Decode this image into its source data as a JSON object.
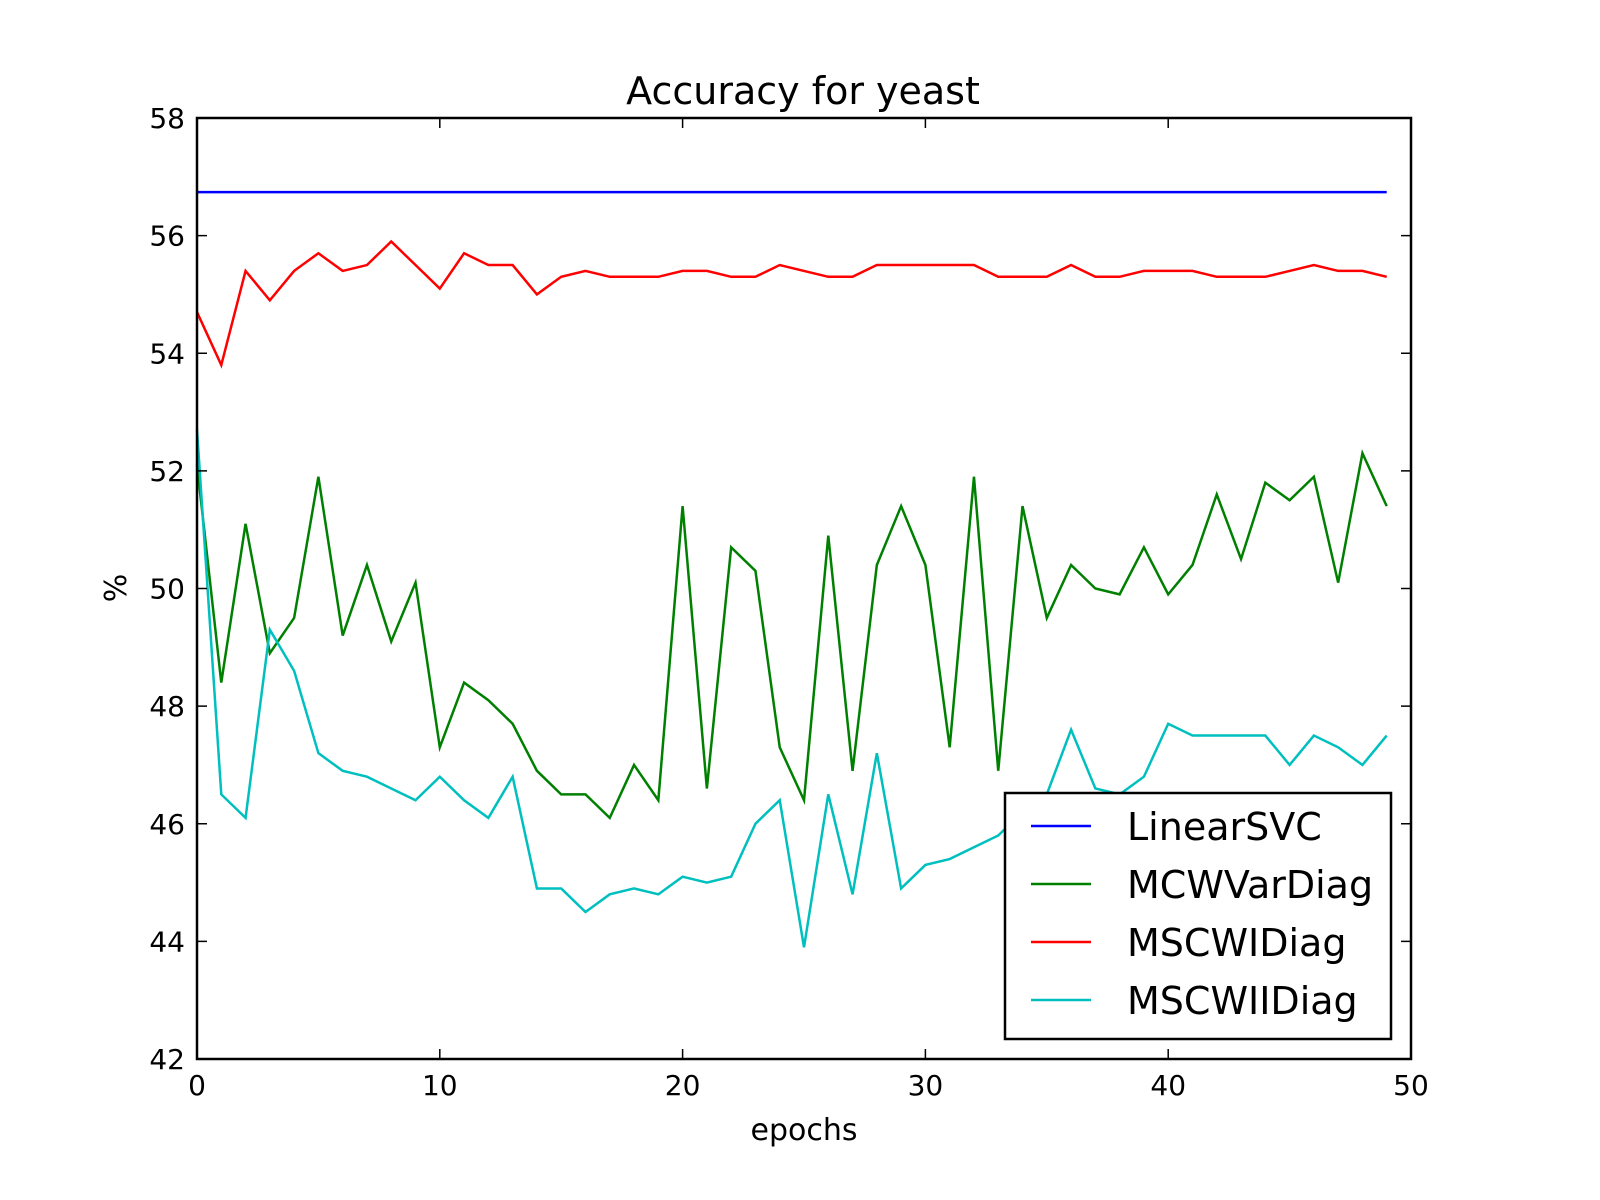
{
  "chart_data": {
    "type": "line",
    "title": "Accuracy for yeast",
    "xlabel": "epochs",
    "ylabel": "%",
    "xlim": [
      0,
      50
    ],
    "ylim": [
      42,
      58
    ],
    "xticks": [
      0,
      10,
      20,
      30,
      40,
      50
    ],
    "yticks": [
      42,
      44,
      46,
      48,
      50,
      52,
      54,
      56,
      58
    ],
    "grid": false,
    "legend_position": "lower-right",
    "x": [
      0,
      1,
      2,
      3,
      4,
      5,
      6,
      7,
      8,
      9,
      10,
      11,
      12,
      13,
      14,
      15,
      16,
      17,
      18,
      19,
      20,
      21,
      22,
      23,
      24,
      25,
      26,
      27,
      28,
      29,
      30,
      31,
      32,
      33,
      34,
      35,
      36,
      37,
      38,
      39,
      40,
      41,
      42,
      43,
      44,
      45,
      46,
      47,
      48,
      49
    ],
    "series": [
      {
        "name": "LinearSVC",
        "color": "#0000ff",
        "values": [
          56.74,
          56.74,
          56.74,
          56.74,
          56.74,
          56.74,
          56.74,
          56.74,
          56.74,
          56.74,
          56.74,
          56.74,
          56.74,
          56.74,
          56.74,
          56.74,
          56.74,
          56.74,
          56.74,
          56.74,
          56.74,
          56.74,
          56.74,
          56.74,
          56.74,
          56.74,
          56.74,
          56.74,
          56.74,
          56.74,
          56.74,
          56.74,
          56.74,
          56.74,
          56.74,
          56.74,
          56.74,
          56.74,
          56.74,
          56.74,
          56.74,
          56.74,
          56.74,
          56.74,
          56.74,
          56.74,
          56.74,
          56.74,
          56.74,
          56.74
        ]
      },
      {
        "name": "MCWVarDiag",
        "color": "#008000",
        "values": [
          52.1,
          48.4,
          51.1,
          48.9,
          49.5,
          51.9,
          49.2,
          50.4,
          49.1,
          50.1,
          47.3,
          48.4,
          48.1,
          47.7,
          46.9,
          46.5,
          46.5,
          46.1,
          47.0,
          46.4,
          51.4,
          46.6,
          50.7,
          50.3,
          47.3,
          46.4,
          50.9,
          46.9,
          50.4,
          51.4,
          50.4,
          47.3,
          51.9,
          46.9,
          51.4,
          49.5,
          50.4,
          50.0,
          49.9,
          50.7,
          49.9,
          50.4,
          51.6,
          50.5,
          51.8,
          51.5,
          51.9,
          50.1,
          52.3,
          51.4
        ]
      },
      {
        "name": "MSCWIDiag",
        "color": "#ff0000",
        "values": [
          54.7,
          53.8,
          55.4,
          54.9,
          55.4,
          55.7,
          55.4,
          55.5,
          55.9,
          55.5,
          55.1,
          55.7,
          55.5,
          55.5,
          55.0,
          55.3,
          55.4,
          55.3,
          55.3,
          55.3,
          55.4,
          55.4,
          55.3,
          55.3,
          55.5,
          55.4,
          55.3,
          55.3,
          55.5,
          55.5,
          55.5,
          55.5,
          55.5,
          55.3,
          55.3,
          55.3,
          55.5,
          55.3,
          55.3,
          55.4,
          55.4,
          55.4,
          55.3,
          55.3,
          55.3,
          55.4,
          55.5,
          55.4,
          55.4,
          55.3
        ]
      },
      {
        "name": "MSCWIIDiag",
        "color": "#00bfbf",
        "values": [
          52.7,
          46.5,
          46.1,
          49.3,
          48.6,
          47.2,
          46.9,
          46.8,
          46.6,
          46.4,
          46.8,
          46.4,
          46.1,
          46.8,
          44.9,
          44.9,
          44.5,
          44.8,
          44.9,
          44.8,
          45.1,
          45.0,
          45.1,
          46.0,
          46.4,
          43.9,
          46.5,
          44.8,
          47.2,
          44.9,
          45.3,
          45.4,
          45.6,
          45.8,
          46.2,
          46.5,
          47.6,
          46.6,
          46.5,
          46.8,
          47.7,
          47.5,
          47.5,
          47.5,
          47.5,
          47.0,
          47.5,
          47.3,
          47.0,
          47.5
        ]
      }
    ]
  }
}
